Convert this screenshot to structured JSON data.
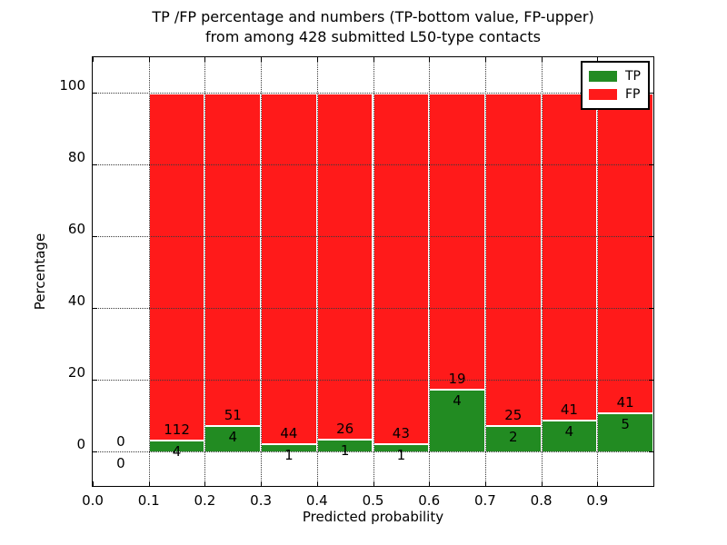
{
  "title": {
    "line1": "TP /FP percentage and numbers (TP-bottom value, FP-upper)",
    "line2": "from among 428 submitted L50-type contacts"
  },
  "chart_data": {
    "type": "bar",
    "stacked": true,
    "normalized_to_percent": true,
    "title": "TP /FP percentage and numbers (TP-bottom value, FP-upper) from among 428 submitted L50-type contacts",
    "xlabel": "Predicted probability",
    "ylabel": "Percentage",
    "xlim": [
      0.0,
      1.0
    ],
    "ylim": [
      -9.3,
      110
    ],
    "xticks": [
      "0.0",
      "0.1",
      "0.2",
      "0.3",
      "0.4",
      "0.5",
      "0.6",
      "0.7",
      "0.8",
      "0.9"
    ],
    "xtick_values": [
      0.0,
      0.1,
      0.2,
      0.3,
      0.4,
      0.5,
      0.6,
      0.7,
      0.8,
      0.9
    ],
    "yticks": [
      "0",
      "20",
      "40",
      "60",
      "80",
      "100"
    ],
    "ytick_values": [
      0,
      20,
      40,
      60,
      80,
      100
    ],
    "grid": "dotted",
    "total_contacts": 428,
    "legend": {
      "position": "upper right",
      "entries": [
        {
          "label": "TP",
          "color": "#228B22"
        },
        {
          "label": "FP",
          "color": "#ff1a1a"
        }
      ]
    },
    "colors": {
      "tp": "#228B22",
      "fp": "#ff1a1a",
      "bar_edge": "#ffffff",
      "grid": "#3a3a3a"
    },
    "bins": [
      {
        "x0": 0.0,
        "x1": 0.1,
        "tp": 0,
        "fp": 0
      },
      {
        "x0": 0.1,
        "x1": 0.2,
        "tp": 4,
        "fp": 112
      },
      {
        "x0": 0.2,
        "x1": 0.3,
        "tp": 4,
        "fp": 51
      },
      {
        "x0": 0.3,
        "x1": 0.4,
        "tp": 1,
        "fp": 44
      },
      {
        "x0": 0.4,
        "x1": 0.5,
        "tp": 1,
        "fp": 26
      },
      {
        "x0": 0.5,
        "x1": 0.6,
        "tp": 1,
        "fp": 43
      },
      {
        "x0": 0.6,
        "x1": 0.7,
        "tp": 4,
        "fp": 19
      },
      {
        "x0": 0.7,
        "x1": 0.8,
        "tp": 2,
        "fp": 25
      },
      {
        "x0": 0.8,
        "x1": 0.9,
        "tp": 4,
        "fp": 41
      },
      {
        "x0": 0.9,
        "x1": 1.0,
        "tp": 5,
        "fp": 41
      }
    ]
  }
}
